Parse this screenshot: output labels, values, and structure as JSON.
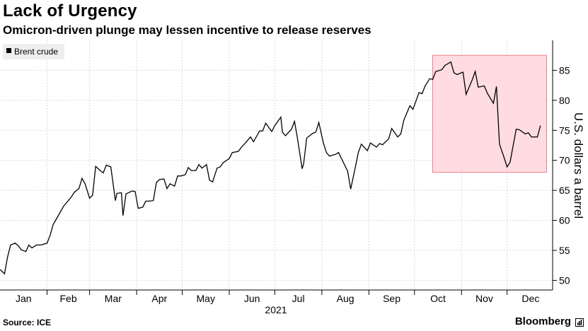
{
  "header": {
    "title": "Lack of Urgency",
    "subtitle": "Omicron-driven plunge may lessen incentive to release reserves"
  },
  "footer": {
    "source": "Source: ICE",
    "brand": "Bloomberg"
  },
  "colors": {
    "line": "#000000",
    "highlight_fill": "#ffd6dc",
    "highlight_stroke": "#f07a8c",
    "grid": "#cfcfcf"
  },
  "chart_data": {
    "type": "line",
    "title": "Lack of Urgency",
    "subtitle": "Omicron-driven plunge may lessen incentive to release reserves",
    "xlabel": "2021",
    "ylabel": "U.S. dollars a barrel",
    "x_tick_labels": [
      "Jan",
      "Feb",
      "Mar",
      "Apr",
      "May",
      "Jun",
      "Jul",
      "Aug",
      "Sep",
      "Oct",
      "Nov",
      "Dec"
    ],
    "y_ticks": [
      50,
      55,
      60,
      65,
      70,
      75,
      80,
      85
    ],
    "ylim": [
      48.4,
      90
    ],
    "xlim": [
      "2021-01-01",
      "2021-12-31"
    ],
    "grid": true,
    "legend_position": "top-left",
    "highlight_region": {
      "x_start": "2021-10-13",
      "x_end": "2021-12-27",
      "y_start": 68,
      "y_end": 87.5
    },
    "series": [
      {
        "name": "Brent crude",
        "x": [
          "2021-01-01",
          "2021-01-04",
          "2021-01-06",
          "2021-01-08",
          "2021-01-11",
          "2021-01-13",
          "2021-01-15",
          "2021-01-18",
          "2021-01-20",
          "2021-01-22",
          "2021-01-25",
          "2021-01-28",
          "2021-02-01",
          "2021-02-03",
          "2021-02-05",
          "2021-02-08",
          "2021-02-10",
          "2021-02-12",
          "2021-02-15",
          "2021-02-17",
          "2021-02-19",
          "2021-02-22",
          "2021-02-24",
          "2021-02-26",
          "2021-03-01",
          "2021-03-03",
          "2021-03-05",
          "2021-03-08",
          "2021-03-10",
          "2021-03-12",
          "2021-03-15",
          "2021-03-18",
          "2021-03-19",
          "2021-03-22",
          "2021-03-23",
          "2021-03-25",
          "2021-03-29",
          "2021-03-31",
          "2021-04-02",
          "2021-04-05",
          "2021-04-07",
          "2021-04-09",
          "2021-04-12",
          "2021-04-14",
          "2021-04-16",
          "2021-04-19",
          "2021-04-21",
          "2021-04-23",
          "2021-04-26",
          "2021-04-28",
          "2021-04-30",
          "2021-05-03",
          "2021-05-05",
          "2021-05-07",
          "2021-05-10",
          "2021-05-12",
          "2021-05-14",
          "2021-05-17",
          "2021-05-19",
          "2021-05-21",
          "2021-05-24",
          "2021-05-26",
          "2021-05-28",
          "2021-06-01",
          "2021-06-03",
          "2021-06-07",
          "2021-06-09",
          "2021-06-11",
          "2021-06-15",
          "2021-06-17",
          "2021-06-21",
          "2021-06-23",
          "2021-06-25",
          "2021-06-29",
          "2021-07-01",
          "2021-07-05",
          "2021-07-06",
          "2021-07-08",
          "2021-07-12",
          "2021-07-14",
          "2021-07-16",
          "2021-07-19",
          "2021-07-20",
          "2021-07-22",
          "2021-07-26",
          "2021-07-28",
          "2021-07-30",
          "2021-08-02",
          "2021-08-04",
          "2021-08-06",
          "2021-08-10",
          "2021-08-12",
          "2021-08-16",
          "2021-08-18",
          "2021-08-20",
          "2021-08-23",
          "2021-08-25",
          "2021-08-27",
          "2021-08-31",
          "2021-09-02",
          "2021-09-06",
          "2021-09-08",
          "2021-09-10",
          "2021-09-14",
          "2021-09-16",
          "2021-09-20",
          "2021-09-22",
          "2021-09-24",
          "2021-09-28",
          "2021-09-30",
          "2021-10-04",
          "2021-10-06",
          "2021-10-08",
          "2021-10-11",
          "2021-10-13",
          "2021-10-15",
          "2021-10-19",
          "2021-10-21",
          "2021-10-25",
          "2021-10-27",
          "2021-10-29",
          "2021-11-02",
          "2021-11-04",
          "2021-11-08",
          "2021-11-10",
          "2021-11-12",
          "2021-11-16",
          "2021-11-18",
          "2021-11-22",
          "2021-11-24",
          "2021-11-26",
          "2021-11-29",
          "2021-12-01",
          "2021-12-03",
          "2021-12-07",
          "2021-12-09",
          "2021-12-13",
          "2021-12-15",
          "2021-12-17",
          "2021-12-21",
          "2021-12-23"
        ],
        "y": [
          51.8,
          51.1,
          53.9,
          55.9,
          56.2,
          55.8,
          55.1,
          54.8,
          55.9,
          55.4,
          55.9,
          55.9,
          56.2,
          57.5,
          59.3,
          60.6,
          61.5,
          62.4,
          63.3,
          63.9,
          64.7,
          65.3,
          67.0,
          66.1,
          63.7,
          64.2,
          69.0,
          68.3,
          67.9,
          69.2,
          68.9,
          63.3,
          64.5,
          64.6,
          60.8,
          64.4,
          64.9,
          64.8,
          62.0,
          62.2,
          63.2,
          63.2,
          63.3,
          66.3,
          66.8,
          66.9,
          65.3,
          66.1,
          65.7,
          67.4,
          67.4,
          67.6,
          68.8,
          68.3,
          68.3,
          69.3,
          68.7,
          69.3,
          66.7,
          66.4,
          68.7,
          68.9,
          69.6,
          70.3,
          71.3,
          71.5,
          72.2,
          72.7,
          73.9,
          73.1,
          74.9,
          74.9,
          76.2,
          74.8,
          75.8,
          77.2,
          74.7,
          74.1,
          75.2,
          76.5,
          73.6,
          68.6,
          69.4,
          73.7,
          74.5,
          74.7,
          76.3,
          72.9,
          71.3,
          70.7,
          71.0,
          71.3,
          69.2,
          68.2,
          65.2,
          68.8,
          71.3,
          72.7,
          71.6,
          72.9,
          72.2,
          72.8,
          72.6,
          73.6,
          75.3,
          73.9,
          74.4,
          76.7,
          79.1,
          78.5,
          81.3,
          81.1,
          82.4,
          83.6,
          83.5,
          84.8,
          85.1,
          85.8,
          86.4,
          84.6,
          84.3,
          84.7,
          81.0,
          83.4,
          84.8,
          82.2,
          82.4,
          81.2,
          79.5,
          82.3,
          72.7,
          70.5,
          68.9,
          69.7,
          75.2,
          75.1,
          74.4,
          74.6,
          73.9,
          73.9,
          75.8
        ]
      }
    ]
  }
}
